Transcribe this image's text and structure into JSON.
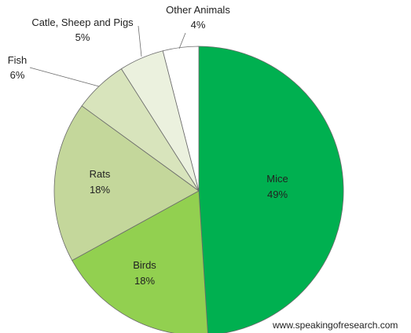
{
  "chart_data": {
    "type": "pie",
    "title": "",
    "start_angle_deg": 0,
    "direction": "clockwise",
    "slices": [
      {
        "name": "Mice",
        "value": 49,
        "label": "49%",
        "color": "#00b050"
      },
      {
        "name": "Birds",
        "value": 18,
        "label": "18%",
        "color": "#92d050"
      },
      {
        "name": "Rats",
        "value": 18,
        "label": "18%",
        "color": "#c4d79b"
      },
      {
        "name": "Fish",
        "value": 6,
        "label": "6%",
        "color": "#d8e4bc"
      },
      {
        "name": "Catle, Sheep and Pigs",
        "value": 5,
        "label": "5%",
        "color": "#ebf1de"
      },
      {
        "name": "Other Animals",
        "value": 4,
        "label": "4%",
        "color": "#ffffff"
      }
    ]
  },
  "credit": "www.speakingofresearch.com"
}
